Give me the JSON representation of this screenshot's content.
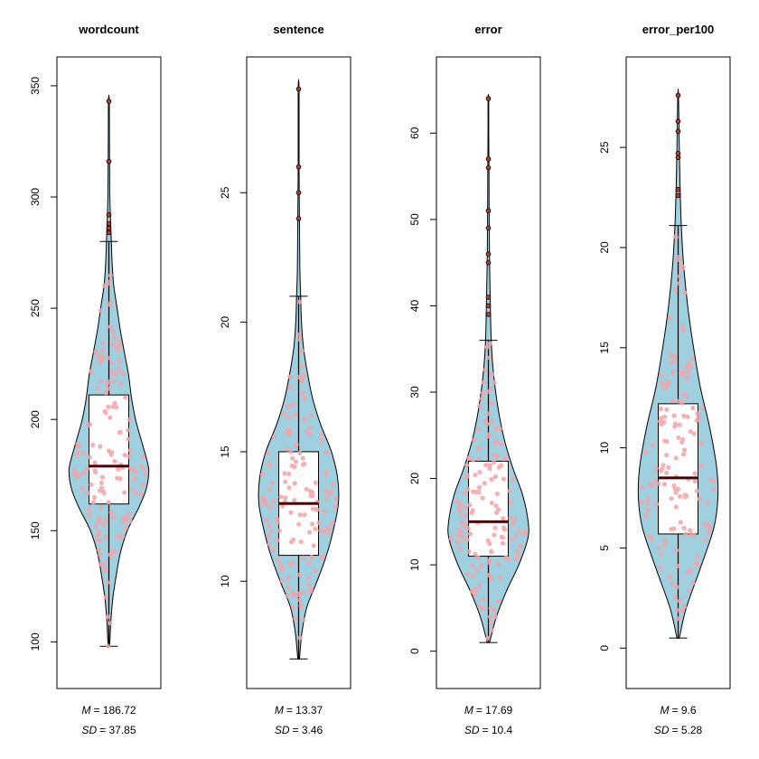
{
  "colors": {
    "violin_fill": "#9ed0e0",
    "violin_stroke": "#000000",
    "point_fill": "#f5a3a8",
    "outlier_fill": "#c0392b",
    "median": "#4a0000",
    "axis": "#000000"
  },
  "chart_data": [
    {
      "type": "violin",
      "title": "wordcount",
      "ylim": [
        90,
        352
      ],
      "yticks": [
        100,
        150,
        200,
        250,
        300,
        350
      ],
      "box": {
        "whisker_low": 98,
        "q1": 162,
        "median": 179,
        "q3": 211,
        "whisker_high": 280
      },
      "outliers": [
        284,
        286,
        288,
        292,
        316,
        343
      ],
      "density": [
        [
          98,
          0.02
        ],
        [
          110,
          0.05
        ],
        [
          120,
          0.1
        ],
        [
          130,
          0.18
        ],
        [
          140,
          0.28
        ],
        [
          150,
          0.45
        ],
        [
          160,
          0.72
        ],
        [
          168,
          0.9
        ],
        [
          175,
          0.97
        ],
        [
          180,
          0.95
        ],
        [
          190,
          0.8
        ],
        [
          200,
          0.65
        ],
        [
          210,
          0.55
        ],
        [
          220,
          0.48
        ],
        [
          230,
          0.38
        ],
        [
          240,
          0.28
        ],
        [
          250,
          0.2
        ],
        [
          260,
          0.12
        ],
        [
          270,
          0.08
        ],
        [
          280,
          0.06
        ],
        [
          290,
          0.04
        ],
        [
          300,
          0.025
        ],
        [
          320,
          0.015
        ],
        [
          343,
          0.01
        ]
      ],
      "mean_label": "M",
      "mean_value": "= 186.72",
      "sd_label": "SD",
      "sd_value": "= 37.85"
    },
    {
      "type": "violin",
      "title": "sentence",
      "ylim": [
        6.8,
        29.3
      ],
      "yticks": [
        10,
        15,
        20,
        25
      ],
      "box": {
        "whisker_low": 7,
        "q1": 11,
        "median": 13,
        "q3": 15,
        "whisker_high": 21
      },
      "outliers": [
        24,
        25,
        26,
        29
      ],
      "density": [
        [
          7,
          0.02
        ],
        [
          8,
          0.08
        ],
        [
          9,
          0.2
        ],
        [
          10,
          0.45
        ],
        [
          11,
          0.68
        ],
        [
          12,
          0.85
        ],
        [
          13,
          0.97
        ],
        [
          14,
          0.95
        ],
        [
          15,
          0.8
        ],
        [
          16,
          0.55
        ],
        [
          17,
          0.35
        ],
        [
          18,
          0.22
        ],
        [
          19,
          0.12
        ],
        [
          20,
          0.07
        ],
        [
          21,
          0.05
        ],
        [
          22,
          0.03
        ],
        [
          24,
          0.02
        ],
        [
          26,
          0.01
        ],
        [
          29,
          0.01
        ]
      ],
      "mean_label": "M",
      "mean_value": "= 13.37",
      "sd_label": "SD",
      "sd_value": "= 3.46"
    },
    {
      "type": "violin",
      "title": "error",
      "ylim": [
        -1.5,
        66
      ],
      "yticks": [
        0,
        10,
        20,
        30,
        40,
        50,
        60
      ],
      "box": {
        "whisker_low": 1,
        "q1": 11,
        "median": 15,
        "q3": 22,
        "whisker_high": 36
      },
      "outliers": [
        39,
        40,
        41,
        45,
        46,
        49,
        51,
        56,
        57,
        64
      ],
      "density": [
        [
          1,
          0.03
        ],
        [
          4,
          0.2
        ],
        [
          7,
          0.45
        ],
        [
          10,
          0.75
        ],
        [
          13,
          0.97
        ],
        [
          15,
          0.98
        ],
        [
          18,
          0.85
        ],
        [
          21,
          0.62
        ],
        [
          24,
          0.42
        ],
        [
          27,
          0.28
        ],
        [
          30,
          0.18
        ],
        [
          33,
          0.11
        ],
        [
          36,
          0.07
        ],
        [
          40,
          0.05
        ],
        [
          45,
          0.03
        ],
        [
          50,
          0.02
        ],
        [
          55,
          0.015
        ],
        [
          60,
          0.01
        ],
        [
          64,
          0.008
        ]
      ],
      "mean_label": "M",
      "mean_value": "= 17.69",
      "sd_label": "SD",
      "sd_value": "= 10.4"
    },
    {
      "type": "violin",
      "title": "error_per100",
      "ylim": [
        -0.8,
        28.3
      ],
      "yticks": [
        0,
        5,
        10,
        15,
        20,
        25
      ],
      "box": {
        "whisker_low": 0.5,
        "q1": 5.7,
        "median": 8.5,
        "q3": 12.2,
        "whisker_high": 21.1
      },
      "outliers": [
        22.6,
        22.9,
        24.5,
        24.7,
        25.8,
        26.3,
        27.6
      ],
      "density": [
        [
          0.5,
          0.03
        ],
        [
          2,
          0.2
        ],
        [
          4,
          0.55
        ],
        [
          6,
          0.88
        ],
        [
          7.5,
          0.98
        ],
        [
          9,
          0.95
        ],
        [
          11,
          0.78
        ],
        [
          13,
          0.55
        ],
        [
          15,
          0.38
        ],
        [
          17,
          0.24
        ],
        [
          19,
          0.14
        ],
        [
          21,
          0.08
        ],
        [
          23,
          0.05
        ],
        [
          25,
          0.03
        ],
        [
          27.6,
          0.01
        ]
      ],
      "mean_label": "M",
      "mean_value": "= 9.6",
      "sd_label": "SD",
      "sd_value": "= 5.28"
    }
  ]
}
